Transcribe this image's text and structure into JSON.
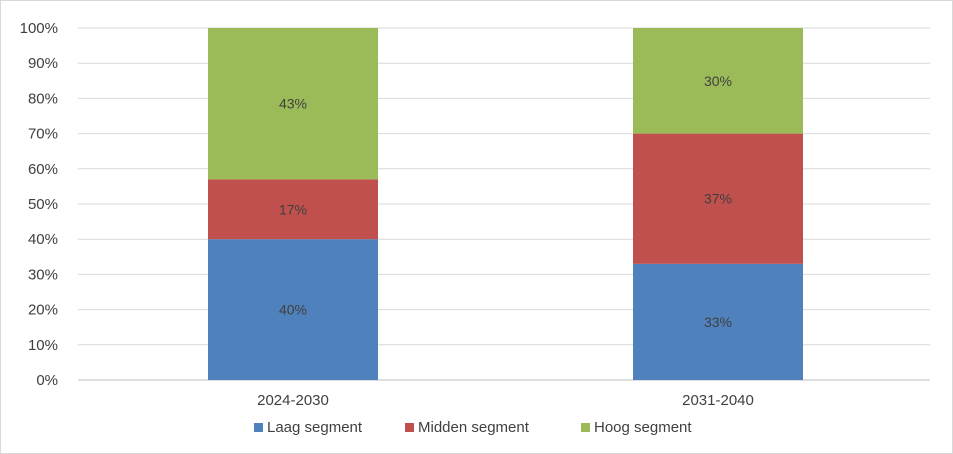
{
  "chart_data": {
    "type": "bar",
    "stacked": true,
    "categories": [
      "2024-2030",
      "2031-2040"
    ],
    "series": [
      {
        "name": "Laag segment",
        "values": [
          40,
          33
        ],
        "labels": [
          "40%",
          "33%"
        ],
        "color": "#4f81bd"
      },
      {
        "name": "Midden segment",
        "values": [
          17,
          37
        ],
        "labels": [
          "17%",
          "37%"
        ],
        "color": "#c0504d"
      },
      {
        "name": "Hoog segment",
        "values": [
          43,
          30
        ],
        "labels": [
          "43%",
          "30%"
        ],
        "color": "#9bbb59"
      }
    ],
    "y_ticks": [
      "0%",
      "10%",
      "20%",
      "30%",
      "40%",
      "50%",
      "60%",
      "70%",
      "80%",
      "90%",
      "100%"
    ],
    "ylim": [
      0,
      100
    ],
    "grid": true,
    "legend_position": "bottom"
  }
}
